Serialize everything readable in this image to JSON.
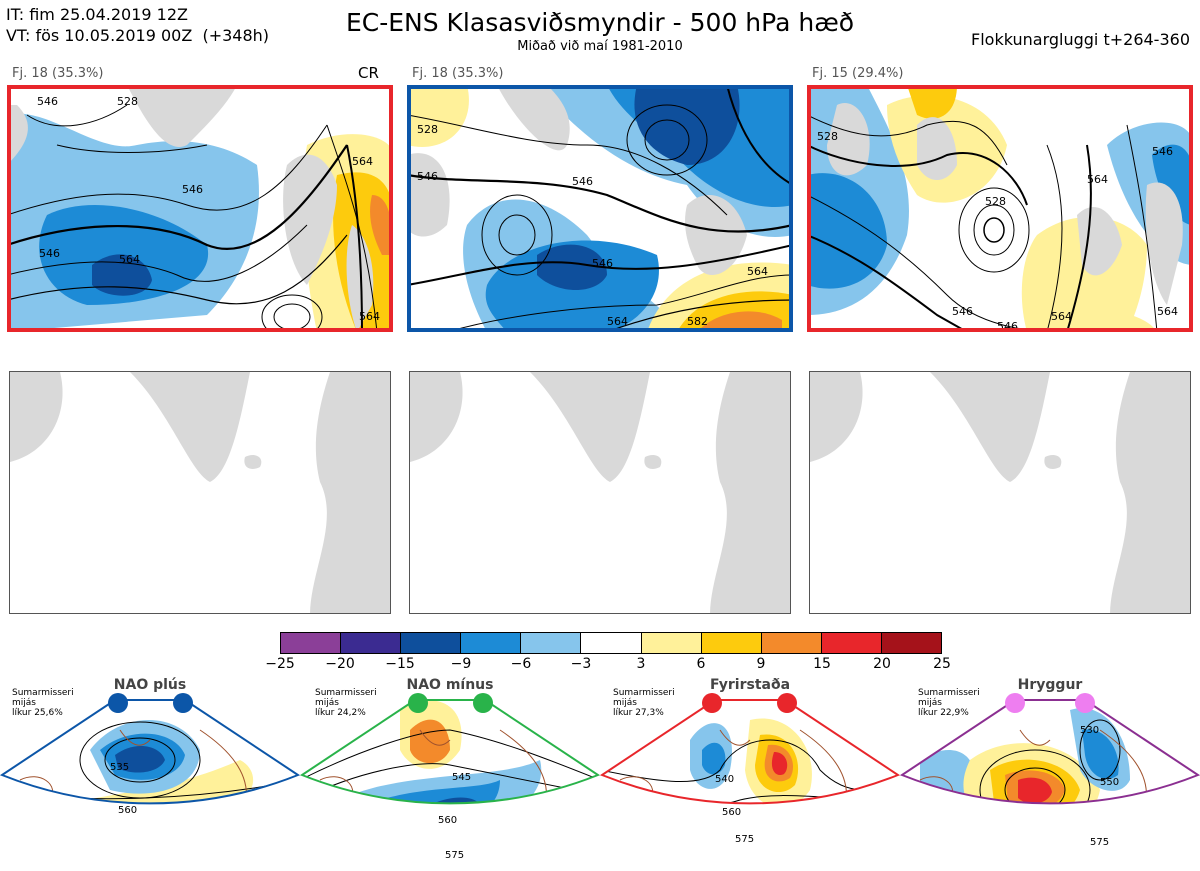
{
  "header": {
    "it_line": "IT: fim 25.04.2019 12Z",
    "vt_line": "VT: fös 10.05.2019 00Z  (+348h)",
    "title": "EC-ENS Klasasviðsmyndir - 500 hPa hæð",
    "subtitle": "Miðað við maí 1981-2010",
    "window": "Flokkunargluggi t+264-360"
  },
  "clusters": [
    {
      "label": "Fj. 18 (35.3%)",
      "tag": "CR",
      "border_color": "#e8262b",
      "contours": [
        "546",
        "546",
        "564",
        "528",
        "546",
        "564",
        "564"
      ]
    },
    {
      "label": "Fj. 18 (35.3%)",
      "tag": "",
      "border_color": "#0c56a8",
      "contours": [
        "528",
        "546",
        "546",
        "546",
        "564",
        "564",
        "582"
      ]
    },
    {
      "label": "Fj. 15 (29.4%)",
      "tag": "",
      "border_color": "#e8262b",
      "contours": [
        "528",
        "528",
        "546",
        "564",
        "546",
        "564",
        "564",
        "546"
      ]
    }
  ],
  "colorbar": {
    "ticks": [
      "−25",
      "−20",
      "−15",
      "−9",
      "−6",
      "−3",
      "3",
      "6",
      "9",
      "15",
      "20",
      "25"
    ],
    "colors": [
      "#8b3f98",
      "#3b2b91",
      "#0e4f9c",
      "#1d8bd6",
      "#86c5ec",
      "#ffffff",
      "#fff19a",
      "#fdcb0d",
      "#f38a2b",
      "#e8262b",
      "#a5121a"
    ]
  },
  "regimes": [
    {
      "name": "NAO plús",
      "info": "Sumarmisseri\nmijás\nlíkur 25,6%",
      "dot_color": "#0c56a8",
      "border_color": "#0c56a8",
      "contours": [
        "535",
        "560"
      ]
    },
    {
      "name": "NAO mínus",
      "info": "Sumarmisseri\nmijás\nlíkur 24,2%",
      "dot_color": "#29b34a",
      "border_color": "#29b34a",
      "contours": [
        "545",
        "560",
        "575"
      ]
    },
    {
      "name": "Fyrirstaða",
      "info": "Sumarmisseri\nmijás\nlíkur 27,3%",
      "dot_color": "#e8262b",
      "border_color": "#e8262b",
      "contours": [
        "540",
        "560",
        "575"
      ]
    },
    {
      "name": "Hryggur",
      "info": "Sumarmisseri\nmijás\nlíkur 22,9%",
      "dot_color": "#ee7ef0",
      "border_color": "#8b2f91",
      "contours": [
        "530",
        "550",
        "575"
      ]
    }
  ]
}
